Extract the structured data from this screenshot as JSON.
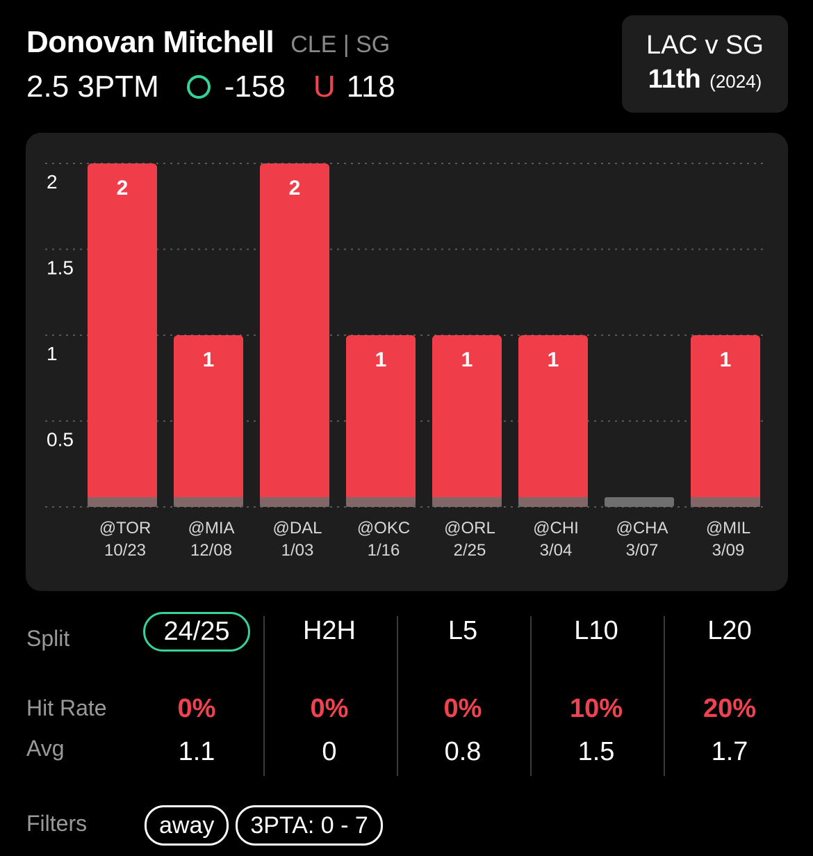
{
  "player": {
    "name": "Donovan Mitchell",
    "team_position": "CLE | SG",
    "prop_line": "2.5 3PTM",
    "over_odds": "-158",
    "under_label": "U",
    "under_odds": "118"
  },
  "game_card": {
    "matchup": "LAC v SG",
    "rank": "11th",
    "rank_year": "(2024)"
  },
  "colors": {
    "bar_miss": "#ef3e4a",
    "bar_zero": "#6f6f6f",
    "over": "#34d399",
    "hit_rate": "#f0424f"
  },
  "chart_data": {
    "type": "bar",
    "categories": [
      "@TOR",
      "@MIA",
      "@DAL",
      "@OKC",
      "@ORL",
      "@CHI",
      "@CHA",
      "@MIL"
    ],
    "dates": [
      "10/23",
      "12/08",
      "1/03",
      "1/16",
      "2/25",
      "3/04",
      "3/07",
      "3/09"
    ],
    "values": [
      2,
      1,
      2,
      1,
      1,
      1,
      0,
      1
    ],
    "data_labels": [
      "2",
      "1",
      "2",
      "1",
      "1",
      "1",
      "",
      "1"
    ],
    "ylim": [
      0,
      2
    ],
    "yticks": [
      "0.5",
      "1",
      "1.5",
      "2"
    ],
    "ytick_values": [
      0.5,
      1,
      1.5,
      2
    ],
    "grid": true,
    "title": "",
    "xlabel": "",
    "ylabel": ""
  },
  "stats": {
    "labels": {
      "split": "Split",
      "hit_rate": "Hit Rate",
      "avg": "Avg"
    },
    "columns": [
      {
        "split": "24/25",
        "hit_rate": "0%",
        "avg": "1.1",
        "selected": true
      },
      {
        "split": "H2H",
        "hit_rate": "0%",
        "avg": "0",
        "selected": false
      },
      {
        "split": "L5",
        "hit_rate": "0%",
        "avg": "0.8",
        "selected": false
      },
      {
        "split": "L10",
        "hit_rate": "10%",
        "avg": "1.5",
        "selected": false
      },
      {
        "split": "L20",
        "hit_rate": "20%",
        "avg": "1.7",
        "selected": false
      }
    ]
  },
  "filters": {
    "label": "Filters",
    "chips": [
      "away",
      "3PTA: 0 - 7"
    ]
  }
}
